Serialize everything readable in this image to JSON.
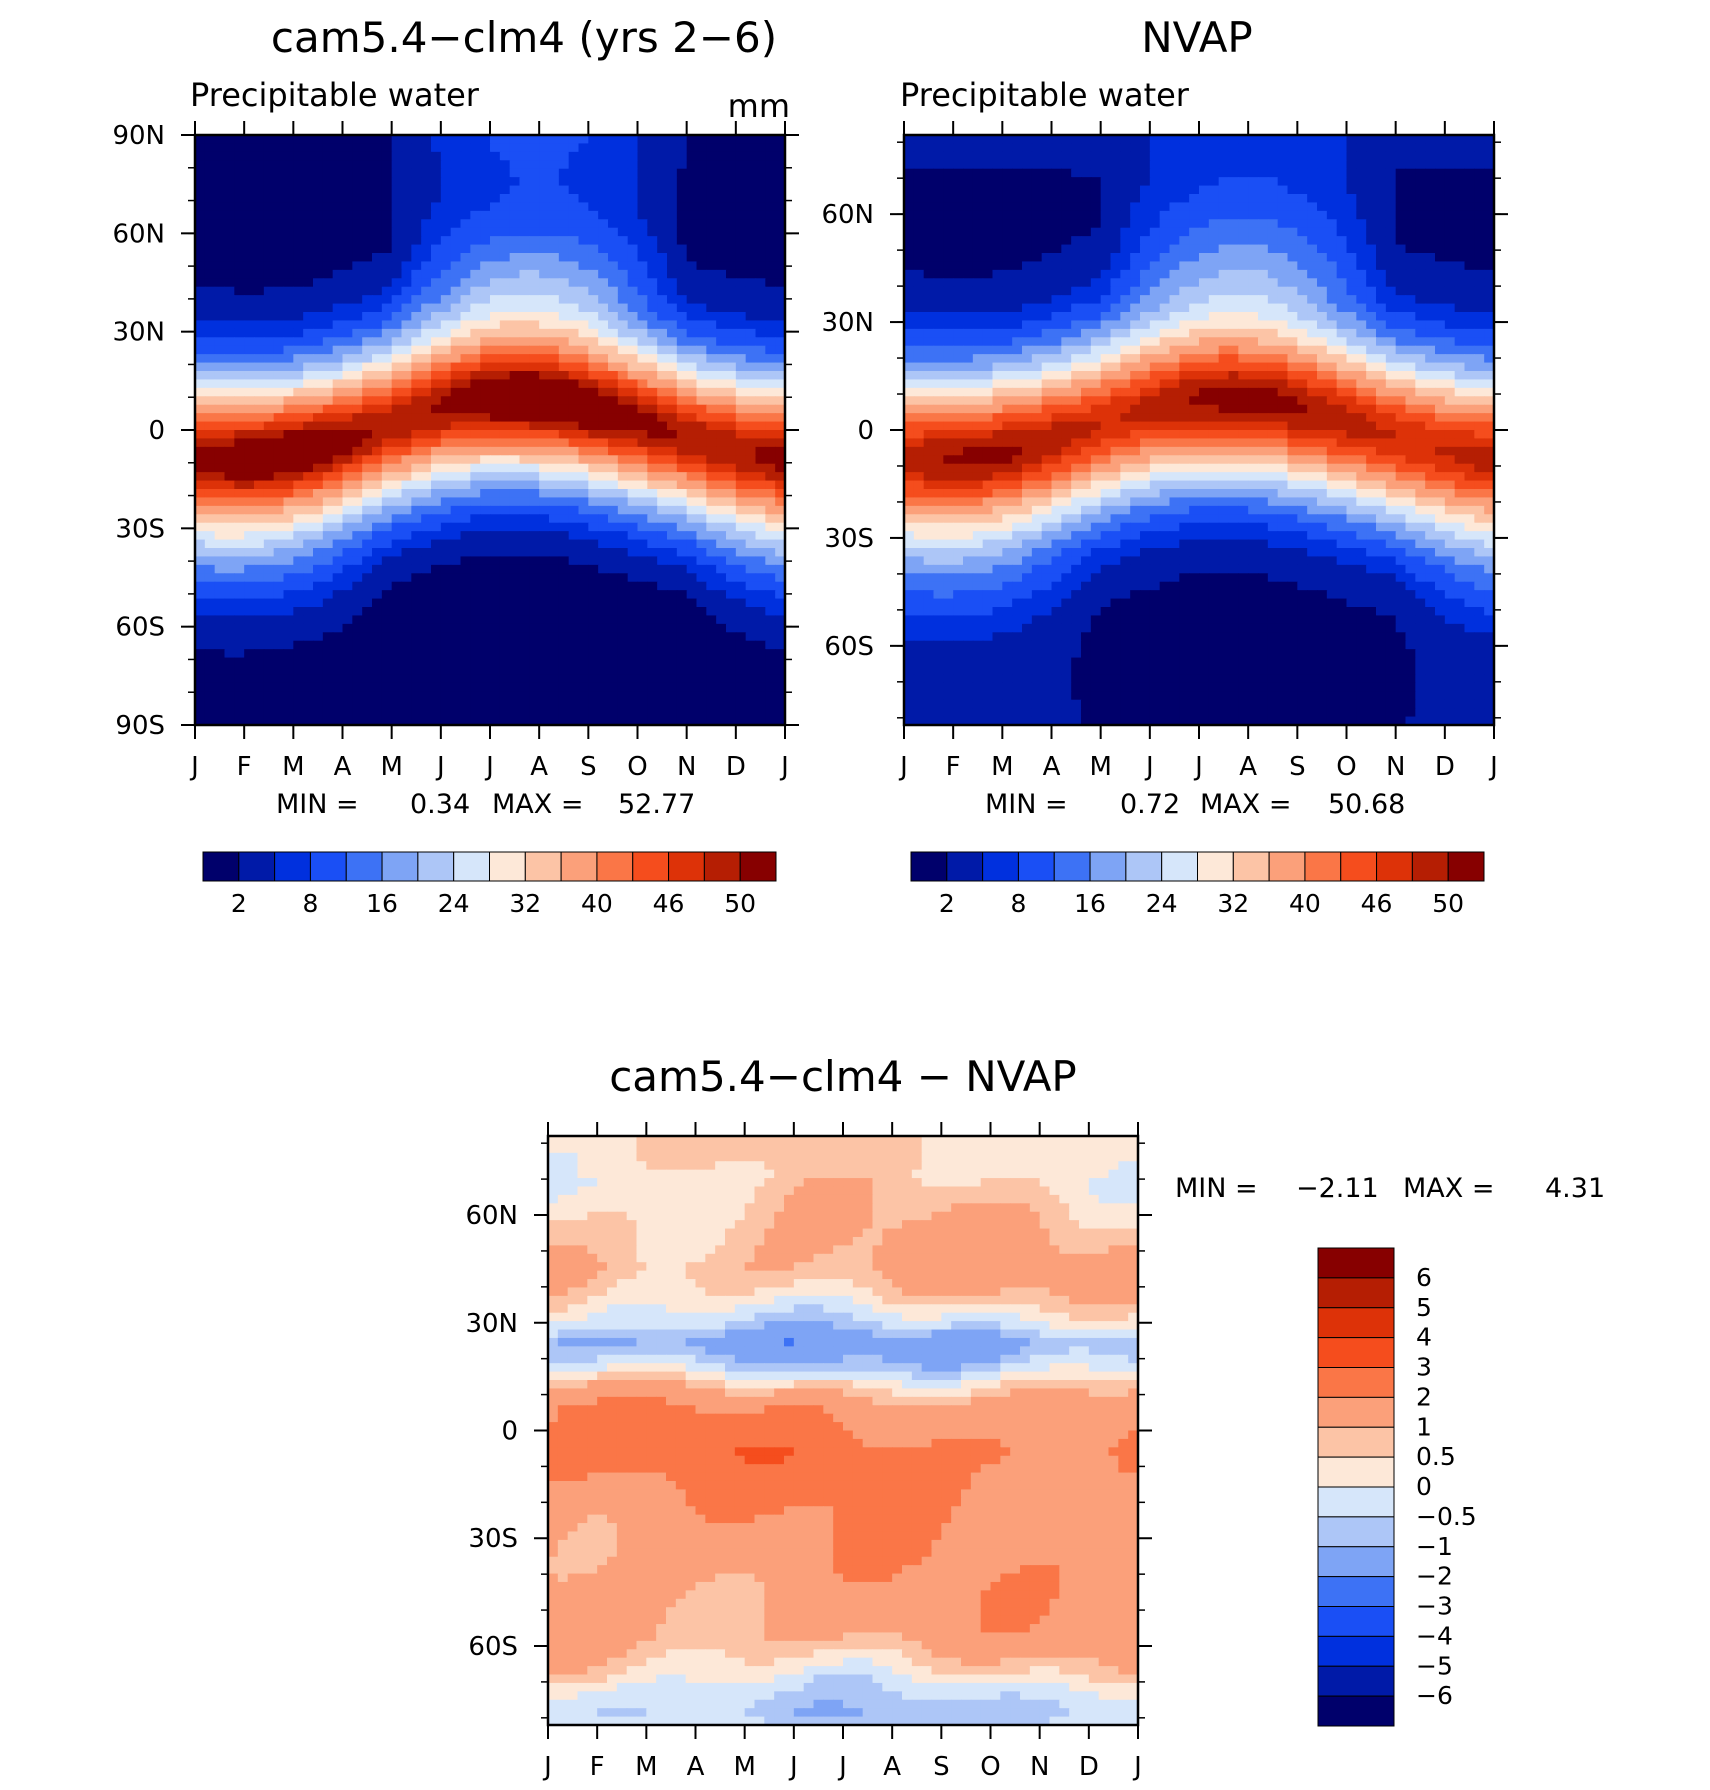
{
  "chart_data": [
    {
      "type": "heatmap",
      "id": "model",
      "title": "cam5.4−clm4 (yrs 2−6)",
      "variable": "Precipitable water",
      "units": "mm",
      "x_tick_labels": [
        "J",
        "F",
        "M",
        "A",
        "M",
        "J",
        "J",
        "A",
        "S",
        "O",
        "N",
        "D",
        "J"
      ],
      "y_tick_labels": [
        "90N",
        "60N",
        "30N",
        "0",
        "30S",
        "60S",
        "90S"
      ],
      "lat_ticks": [
        90,
        60,
        30,
        0,
        -30,
        -60,
        -90
      ],
      "lat_range": [
        -90,
        90
      ],
      "min_label": "MIN =",
      "min_value": "0.34",
      "max_label": "MAX =",
      "max_value": "52.77",
      "field": {
        "eq": 51,
        "shift": 9,
        "width": 26,
        "np_base": 2.0,
        "np_amp": 7.0,
        "sp_base": 0.6,
        "sp_amp": 1.0,
        "ns": 5.0
      },
      "colorbar": {
        "orientation": "horizontal",
        "levels": [
          2,
          5,
          8,
          12,
          16,
          20,
          24,
          28,
          32,
          36,
          40,
          43,
          46,
          48,
          50
        ],
        "tick_labels": [
          "2",
          "8",
          "16",
          "24",
          "32",
          "40",
          "46",
          "50"
        ]
      }
    },
    {
      "type": "heatmap",
      "id": "obs",
      "title": "NVAP",
      "variable": "Precipitable water",
      "x_tick_labels": [
        "J",
        "F",
        "M",
        "A",
        "M",
        "J",
        "J",
        "A",
        "S",
        "O",
        "N",
        "D",
        "J"
      ],
      "y_tick_labels": [
        "60N",
        "30N",
        "0",
        "30S",
        "60S"
      ],
      "lat_ticks": [
        60,
        30,
        0,
        -30,
        -60
      ],
      "lat_range": [
        -82,
        82
      ],
      "min_label": "MIN =",
      "min_value": "0.72",
      "max_label": "MAX =",
      "max_value": "50.68",
      "field": {
        "eq": 49,
        "shift": 8,
        "width": 25,
        "np_base": 2.5,
        "np_amp": 6.0,
        "sp_base": 2.0,
        "sp_amp": 1.5,
        "ns": 4.0
      },
      "colorbar": {
        "orientation": "horizontal",
        "levels": [
          2,
          5,
          8,
          12,
          16,
          20,
          24,
          28,
          32,
          36,
          40,
          43,
          46,
          48,
          50
        ],
        "tick_labels": [
          "2",
          "8",
          "16",
          "24",
          "32",
          "40",
          "46",
          "50"
        ]
      }
    },
    {
      "type": "heatmap",
      "id": "diff",
      "title": "cam5.4−clm4 − NVAP",
      "x_tick_labels": [
        "J",
        "F",
        "M",
        "A",
        "M",
        "J",
        "J",
        "A",
        "S",
        "O",
        "N",
        "D",
        "J"
      ],
      "y_tick_labels": [
        "60N",
        "30N",
        "0",
        "30S",
        "60S"
      ],
      "lat_ticks": [
        60,
        30,
        0,
        -30,
        -60
      ],
      "lat_range": [
        -82,
        82
      ],
      "min_label": "MIN =",
      "min_value": "−2.11",
      "max_label": "MAX =",
      "max_value": "4.31",
      "profile": {
        "lat": [
          82,
          70,
          55,
          45,
          38,
          30,
          24,
          18,
          12,
          6,
          0,
          -6,
          -14,
          -24,
          -34,
          -46,
          -58,
          -66,
          -72,
          -78,
          -82
        ],
        "val": [
          0.5,
          0.4,
          0.9,
          1.2,
          0.7,
          -0.3,
          -1.4,
          -0.5,
          0.8,
          1.8,
          2.1,
          2.4,
          2.0,
          1.7,
          1.6,
          1.5,
          1.3,
          0.5,
          -0.2,
          -0.7,
          -0.4
        ]
      },
      "colorbar": {
        "orientation": "vertical",
        "levels": [
          -6,
          -5,
          -4,
          -3,
          -2,
          -1,
          -0.5,
          0,
          0.5,
          1,
          2,
          3,
          4,
          5,
          6
        ],
        "tick_labels": [
          "6",
          "5",
          "4",
          "3",
          "2",
          "1",
          "0.5",
          "0",
          "−0.5",
          "−1",
          "−2",
          "−3",
          "−4",
          "−5",
          "−6"
        ]
      }
    }
  ],
  "colors": {
    "palette": [
      "#00006b",
      "#001aa8",
      "#0030de",
      "#1a4ff5",
      "#3d72f5",
      "#7ea4f5",
      "#adc6f7",
      "#d6e6fa",
      "#fde8d8",
      "#fcc4a6",
      "#fba07a",
      "#fa7647",
      "#f54d1d",
      "#dd3208",
      "#b51e03",
      "#870000"
    ],
    "diff_palette": [
      "#00006b",
      "#001aa8",
      "#0030de",
      "#1a4ff5",
      "#3d72f5",
      "#7ea4f5",
      "#adc6f7",
      "#d6e6fa",
      "#fde8d8",
      "#fcc4a6",
      "#fba07a",
      "#fa7647",
      "#f54d1d",
      "#dd3208",
      "#b51e03",
      "#870000"
    ]
  }
}
